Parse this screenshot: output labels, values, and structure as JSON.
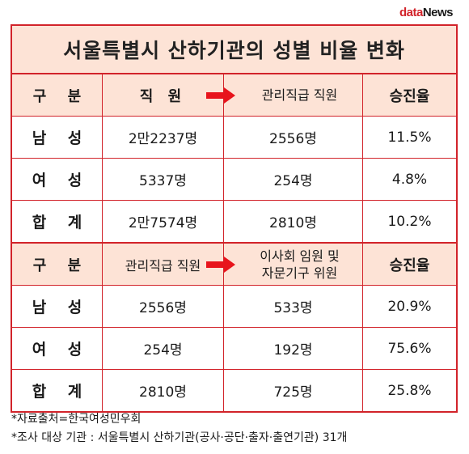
{
  "logo": {
    "part1": "data",
    "part2": "News"
  },
  "title": "서울특별시 산하기관의 성별 비율 변화",
  "section1": {
    "header": {
      "col1": "구 분",
      "col2": "직 원",
      "col3": "관리직급 직원",
      "col4": "승진율"
    },
    "rows": [
      {
        "label": "남 성",
        "col2": "2만2237명",
        "col3": "2556명",
        "col4": "11.5%"
      },
      {
        "label": "여 성",
        "col2": "5337명",
        "col3": "254명",
        "col4": "4.8%"
      },
      {
        "label": "합 계",
        "col2": "2만7574명",
        "col3": "2810명",
        "col4": "10.2%"
      }
    ]
  },
  "section2": {
    "header": {
      "col1": "구 분",
      "col2": "관리직급 직원",
      "col3_line1": "이사회 임원 및",
      "col3_line2": "자문기구 위원",
      "col4": "승진율"
    },
    "rows": [
      {
        "label": "남 성",
        "col2": "2556명",
        "col3": "533명",
        "col4": "20.9%"
      },
      {
        "label": "여 성",
        "col2": "254명",
        "col3": "192명",
        "col4": "75.6%"
      },
      {
        "label": "합 계",
        "col2": "2810명",
        "col3": "725명",
        "col4": "25.8%"
      }
    ]
  },
  "notes": {
    "line1": "*자료출처=한국여성민우회",
    "line2": "*조사 대상 기관 : 서울특별시 산하기관(공사·공단·출자·출연기관) 31개"
  },
  "colors": {
    "accent": "#d2232a",
    "header_bg": "#fde3d6"
  }
}
